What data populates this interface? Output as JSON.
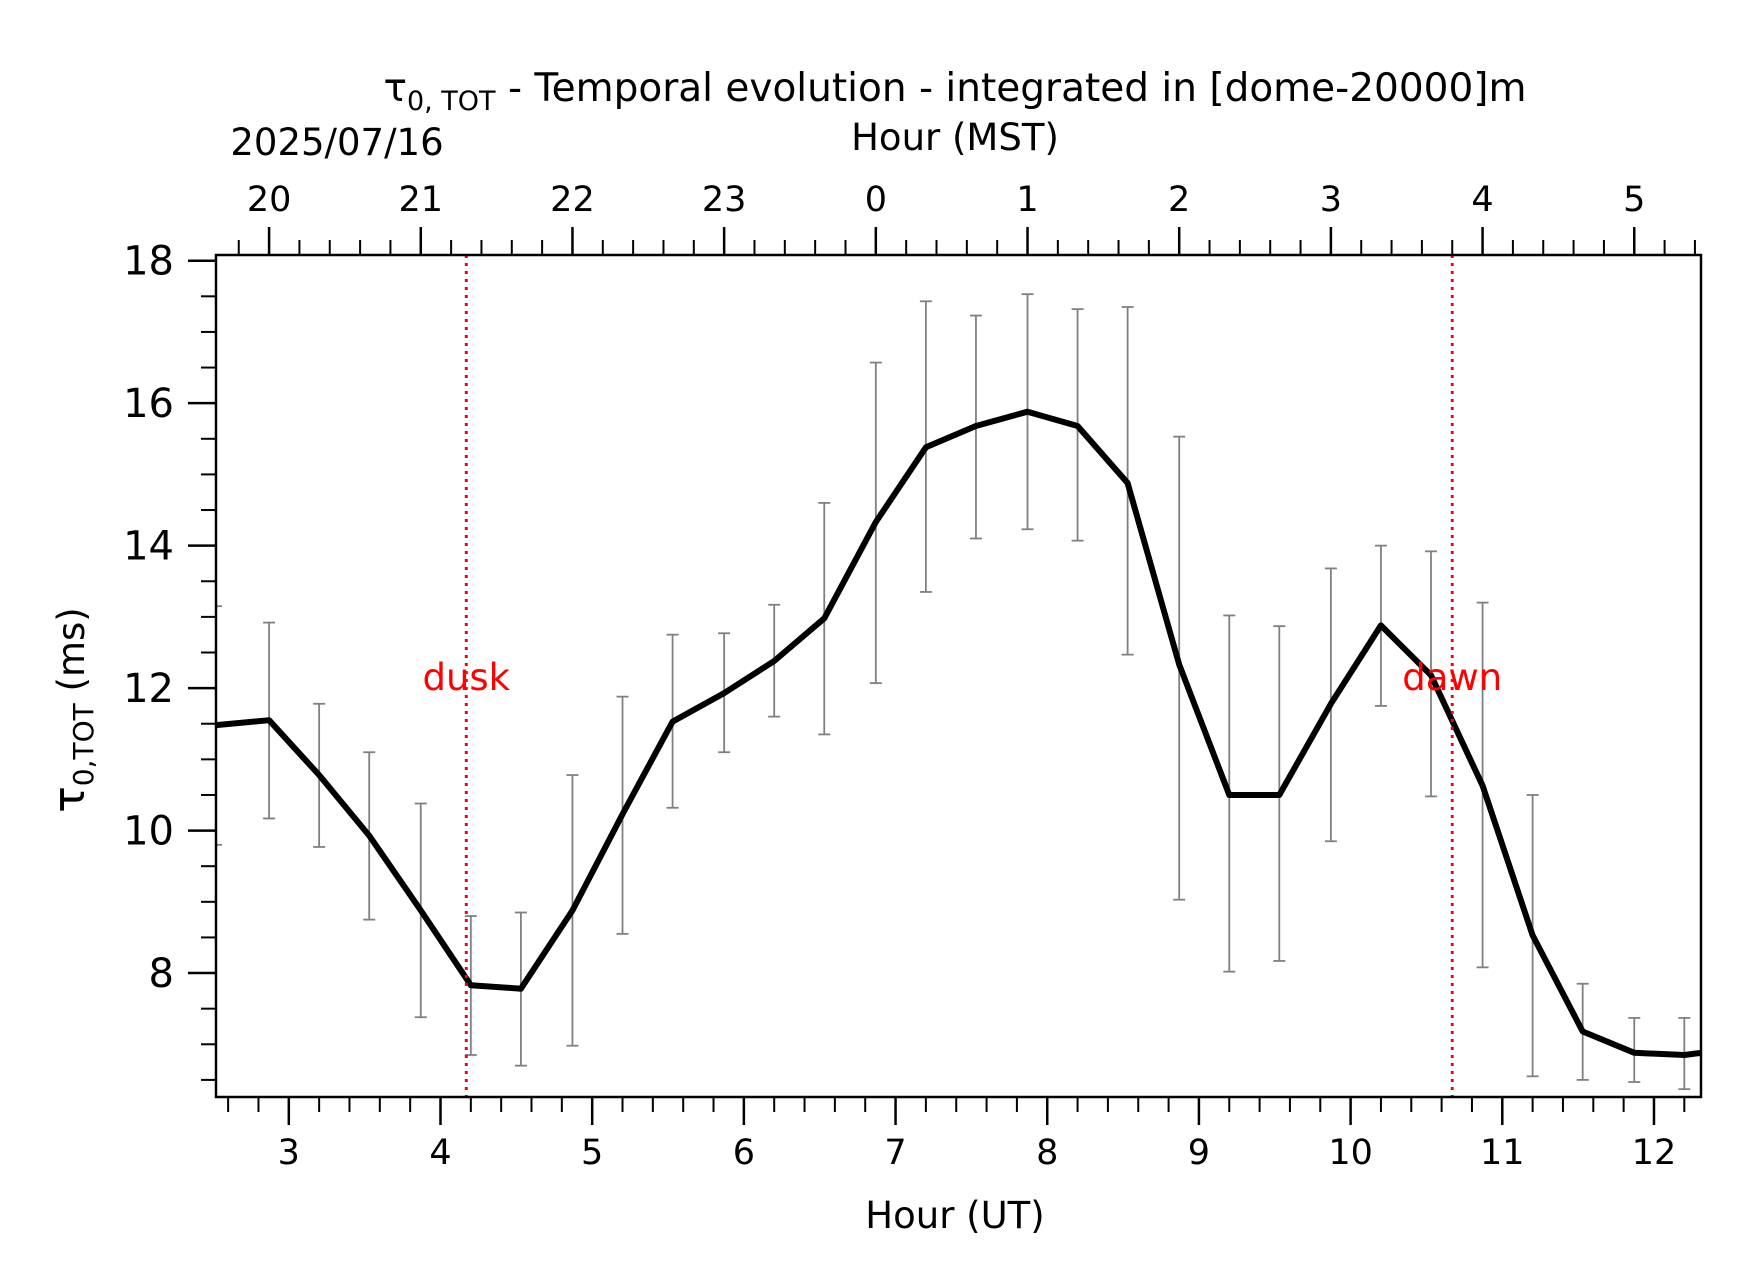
{
  "chart_data": {
    "type": "line",
    "title": {
      "symbol": "τ",
      "subscript": "0, TOT",
      "rest": " - Temporal evolution - integrated in [dome-20000]m"
    },
    "date_label": "2025/07/16",
    "xlabel": "Hour (UT)",
    "xlabel_top": "Hour (MST)",
    "ylabel": {
      "symbol": "τ",
      "subscript": "0,TOT",
      "rest": " (ms)"
    },
    "xlim": [
      2.52,
      12.31
    ],
    "ylim": [
      6.26,
      18.08
    ],
    "x_ticks": [
      3,
      4,
      5,
      6,
      7,
      8,
      9,
      10,
      11,
      12
    ],
    "x_tick_labels": [
      "3",
      "4",
      "5",
      "6",
      "7",
      "8",
      "9",
      "10",
      "11",
      "12"
    ],
    "x_minor_step": 0.2,
    "top_ticks_ut": [
      2.87,
      3.87,
      4.87,
      5.87,
      6.87,
      7.87,
      8.87,
      9.87,
      10.87,
      11.87
    ],
    "top_tick_labels": [
      "20",
      "21",
      "22",
      "23",
      "0",
      "1",
      "2",
      "3",
      "4",
      "5"
    ],
    "y_ticks": [
      8,
      10,
      12,
      14,
      16,
      18
    ],
    "y_tick_labels": [
      "8",
      "10",
      "12",
      "14",
      "16",
      "18"
    ],
    "y_minor_step": 0.5,
    "grid": false,
    "line_color": "#000000",
    "errorbar_color": "#808080",
    "event_color": "#ff0000",
    "events": [
      {
        "x": 4.17,
        "label": "dusk"
      },
      {
        "x": 10.67,
        "label": "dawn"
      }
    ],
    "series": [
      {
        "x": [
          2.52,
          2.87,
          3.2,
          3.53,
          3.87,
          4.2,
          4.53,
          4.87,
          5.2,
          5.53,
          5.87,
          6.2,
          6.53,
          6.87,
          7.2,
          7.53,
          7.87,
          8.2,
          8.53,
          8.87,
          9.2,
          9.53,
          9.87,
          10.2,
          10.53,
          10.87,
          11.2,
          11.53,
          11.87,
          12.2,
          12.31
        ],
        "y": [
          11.48,
          11.55,
          10.78,
          9.93,
          8.88,
          7.83,
          7.78,
          8.88,
          10.23,
          11.53,
          11.93,
          12.38,
          12.98,
          14.33,
          15.38,
          15.68,
          15.88,
          15.68,
          14.88,
          12.33,
          10.5,
          10.5,
          11.78,
          12.88,
          12.18,
          10.63,
          8.53,
          7.18,
          6.88,
          6.85,
          6.88
        ],
        "yerr_low": [
          9.8,
          10.17,
          9.77,
          8.75,
          7.38,
          6.85,
          6.7,
          6.98,
          8.55,
          10.32,
          11.1,
          11.6,
          11.35,
          12.07,
          13.35,
          14.1,
          14.23,
          14.07,
          12.47,
          9.03,
          8.02,
          8.17,
          9.85,
          11.75,
          10.48,
          8.08,
          6.55,
          6.5,
          6.47,
          6.37,
          null
        ],
        "yerr_high": [
          13.15,
          12.92,
          11.78,
          11.1,
          10.38,
          8.8,
          8.85,
          10.78,
          11.88,
          12.75,
          12.77,
          13.17,
          14.6,
          16.57,
          17.43,
          17.23,
          17.53,
          17.32,
          17.35,
          15.53,
          13.02,
          12.87,
          13.68,
          14.0,
          13.92,
          13.2,
          10.5,
          7.85,
          7.37,
          7.37,
          null
        ]
      }
    ]
  }
}
